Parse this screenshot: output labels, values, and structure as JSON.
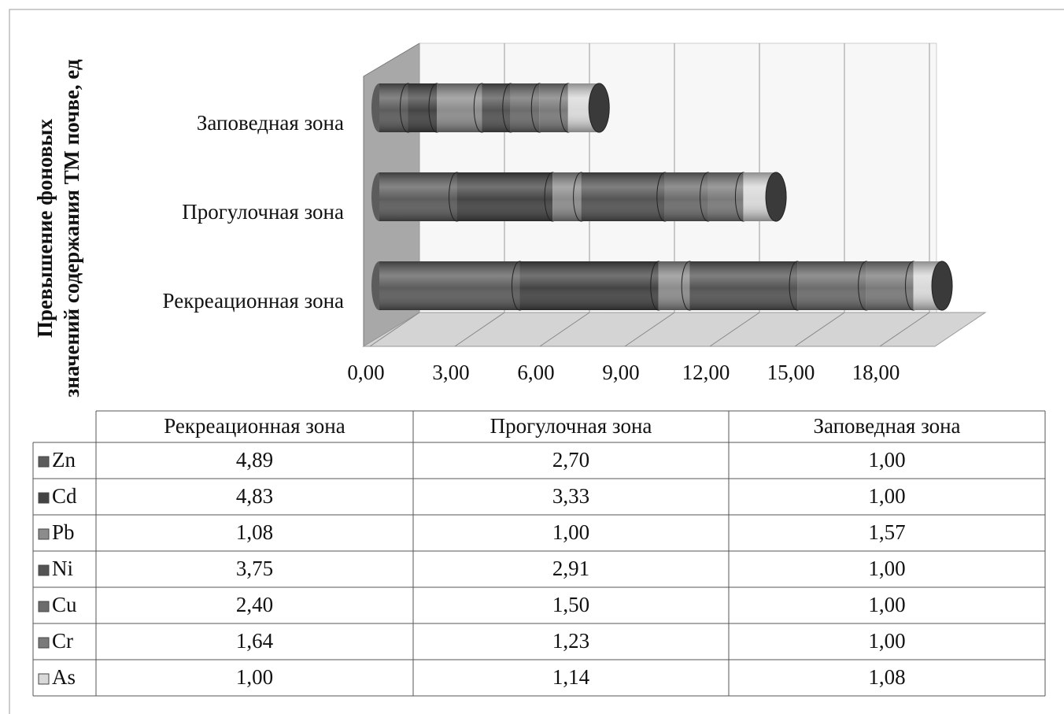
{
  "chart_data": {
    "type": "bar",
    "orientation": "horizontal",
    "stacked": true,
    "style": "3d-cylinder",
    "ylabel": [
      "Превышение фоновых",
      "значений содержания ТМ почве, ед"
    ],
    "categories": [
      "Рекреационная зона",
      "Прогулочная зона",
      "Заповедная зона"
    ],
    "series": [
      {
        "name": "Zn",
        "color": "#5c5c5c",
        "values": [
          4.89,
          2.7,
          1.0
        ],
        "value_labels": [
          "4,89",
          "2,70",
          "1,00"
        ]
      },
      {
        "name": "Cd",
        "color": "#444444",
        "values": [
          4.83,
          3.33,
          1.0
        ],
        "value_labels": [
          "4,83",
          "3,33",
          "1,00"
        ]
      },
      {
        "name": "Pb",
        "color": "#8c8c8c",
        "values": [
          1.08,
          1.0,
          1.57
        ],
        "value_labels": [
          "1,08",
          "1,00",
          "1,57"
        ]
      },
      {
        "name": "Ni",
        "color": "#545454",
        "values": [
          3.75,
          2.91,
          1.0
        ],
        "value_labels": [
          "3,75",
          "2,91",
          "1,00"
        ]
      },
      {
        "name": "Cu",
        "color": "#6c6c6c",
        "values": [
          2.4,
          1.5,
          1.0
        ],
        "value_labels": [
          "2,40",
          "1,50",
          "1,00"
        ]
      },
      {
        "name": "Cr",
        "color": "#7a7a7a",
        "values": [
          1.64,
          1.23,
          1.0
        ],
        "value_labels": [
          "1,64",
          "1,23",
          "1,00"
        ]
      },
      {
        "name": "As",
        "color": "#d9d9d9",
        "values": [
          1.0,
          1.14,
          1.08
        ],
        "value_labels": [
          "1,00",
          "1,14",
          "1,08"
        ]
      }
    ],
    "xlim": [
      0,
      20
    ],
    "xticks": [
      {
        "value": 0,
        "label": "0,00"
      },
      {
        "value": 3,
        "label": "3,00"
      },
      {
        "value": 6,
        "label": "6,00"
      },
      {
        "value": 9,
        "label": "9,00"
      },
      {
        "value": 12,
        "label": "12,00"
      },
      {
        "value": 15,
        "label": "15,00"
      },
      {
        "value": 18,
        "label": "18,00"
      }
    ],
    "grid": true,
    "data_table": true
  }
}
